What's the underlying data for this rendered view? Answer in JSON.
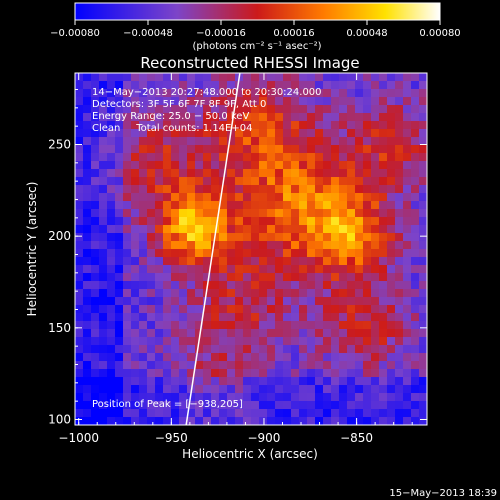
{
  "chart_data": {
    "type": "heatmap",
    "title": "Reconstructed RHESSI Image",
    "xlabel": "Heliocentric X (arcsec)",
    "ylabel": "Heliocentric Y (arcsec)",
    "xlim": [
      -1002,
      -812
    ],
    "ylim": [
      97,
      289
    ],
    "xticks": [
      -1000,
      -950,
      -900,
      -850
    ],
    "xtick_labels": [
      "−1000",
      "−950",
      "−900",
      "−850"
    ],
    "yticks": [
      100,
      150,
      200,
      250
    ],
    "ytick_labels": [
      "100",
      "150",
      "200",
      "250"
    ],
    "colorbar": {
      "min": -0.0008,
      "max": 0.0008,
      "ticks": [
        -0.0008,
        -0.00048,
        -0.00016,
        0.00016,
        0.00048,
        0.0008
      ],
      "tick_labels": [
        "−0.00080",
        "−0.00048",
        "−0.00016",
        "0.00016",
        "0.00048",
        "0.00080"
      ],
      "unit_label": "(photons cm⁻² s⁻¹ asec⁻²)",
      "colormap": "blue-purple-red-yellow-white"
    },
    "annotations": [
      "14−May−2013 20:27:48.000 to 20:30:24.000",
      "Detectors: 3F 5F 6F 7F 8F 9F, Att 0",
      "Energy Range: 25.0 − 50.0 keV",
      "Clean     Total counts: 1.14E+04"
    ],
    "peak_label": "Position of Peak = [−938,205]",
    "peak": [
      -938,
      205
    ],
    "limb_line": {
      "x": [
        -942,
        -913
      ],
      "y": [
        97,
        289
      ]
    },
    "grid": false
  },
  "footer": {
    "timestamp": "15−May−2013 18:39"
  },
  "colors": {
    "background": "#000000",
    "foreground": "#ffffff",
    "colormap_stops": [
      "#0000ff",
      "#7d44c8",
      "#cc1a1a",
      "#ff7a00",
      "#ffe100",
      "#ffffff"
    ]
  }
}
